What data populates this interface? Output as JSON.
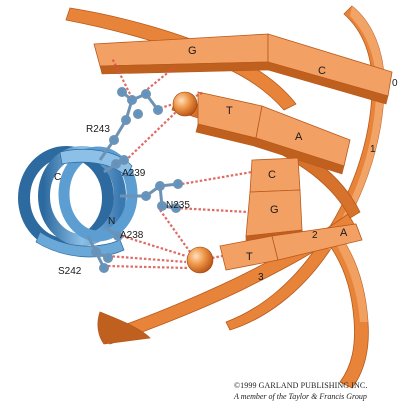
{
  "residues": {
    "r243": "R243",
    "a239": "A239",
    "n235": "N235",
    "a238": "A238",
    "s242": "S242"
  },
  "helix_labels": {
    "c_terminus": "C",
    "n_terminus": "N"
  },
  "bases": {
    "top_left": "G",
    "top_right": "C",
    "second_left": "T",
    "second_right": "A",
    "third_left": "C",
    "third_right": "G",
    "fourth_left": "T",
    "fourth_right": "A"
  },
  "position_numbers": {
    "p0": "0",
    "p1": "1",
    "p2": "2",
    "p3": "3"
  },
  "credit": {
    "line1": "©1999 GARLAND PUBLISHING INC.",
    "line2": "A member of the Taylor & Francis Group"
  },
  "colors": {
    "ribbon": "#e8843a",
    "ribbon_dark": "#c0601f",
    "ribbon_light": "#f6b27a",
    "helix": "#4f8fc6",
    "helix_dark": "#2d6aa0",
    "hbond": "#d9524a",
    "phosphate": "#e07a24"
  }
}
